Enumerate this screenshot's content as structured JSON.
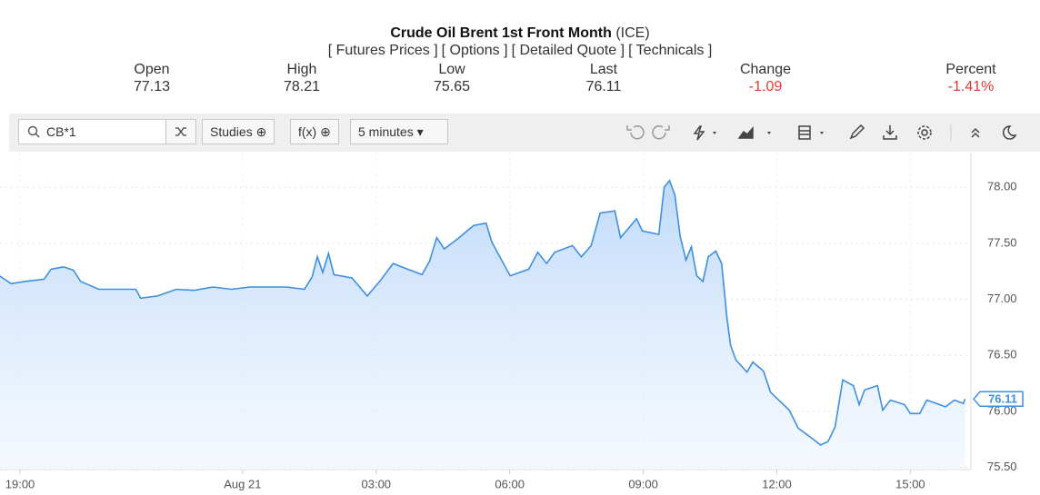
{
  "header": {
    "title": "Crude Oil Brent 1st Front Month",
    "exchange": "(ICE)",
    "links": [
      "[ Futures Prices ]",
      "[ Options ]",
      "[ Detailed Quote ]",
      "[ Technicals ]"
    ],
    "stats": [
      {
        "label": "Open",
        "value": "77.13"
      },
      {
        "label": "High",
        "value": "78.21"
      },
      {
        "label": "Low",
        "value": "75.65"
      },
      {
        "label": "Last",
        "value": "76.11"
      },
      {
        "label": "Change",
        "value": "-1.09"
      },
      {
        "label": "Percent",
        "value": "-1.41%"
      }
    ]
  },
  "toolbar": {
    "symbol": "CB*1",
    "studies": "Studies",
    "fx": "f(x)",
    "interval": "5 minutes"
  },
  "chart_data": {
    "type": "area",
    "color": "#3d8fe0",
    "grid": true,
    "x": [
      18.54,
      18.8,
      19.12,
      19.54,
      19.7,
      19.98,
      20.2,
      20.36,
      20.77,
      21.19,
      21.6,
      21.71,
      22.09,
      22.51,
      22.91,
      23.33,
      23.75,
      24.16,
      24.57,
      24.98,
      25.39,
      25.56,
      25.68,
      25.8,
      25.93,
      26.05,
      26.46,
      26.8,
      27.08,
      27.38,
      27.7,
      28.03,
      28.2,
      28.36,
      28.53,
      28.86,
      29.19,
      29.47,
      29.6,
      30.01,
      30.43,
      30.63,
      30.83,
      31.01,
      31.41,
      31.61,
      31.83,
      32.03,
      32.36,
      32.49,
      32.85,
      32.98,
      33.35,
      33.47,
      33.59,
      33.71,
      33.83,
      33.96,
      34.08,
      34.2,
      34.34,
      34.46,
      34.63,
      34.76,
      34.88,
      34.96,
      35.08,
      35.33,
      35.46,
      35.7,
      35.86,
      36.28,
      36.48,
      36.82,
      36.98,
      37.15,
      37.31,
      37.48,
      37.72,
      37.85,
      37.97,
      38.26,
      38.38,
      38.55,
      38.87,
      39.0,
      39.21,
      39.37,
      39.79,
      39.99,
      40.19,
      40.23
    ],
    "values": [
      77.21,
      77.14,
      77.16,
      77.18,
      77.27,
      77.29,
      77.26,
      77.16,
      77.09,
      77.09,
      77.09,
      77.01,
      77.03,
      77.09,
      77.08,
      77.11,
      77.09,
      77.11,
      77.11,
      77.11,
      77.09,
      77.2,
      77.38,
      77.24,
      77.41,
      77.22,
      77.19,
      77.03,
      77.16,
      77.32,
      77.27,
      77.22,
      77.34,
      77.55,
      77.45,
      77.55,
      77.66,
      77.68,
      77.51,
      77.21,
      77.27,
      77.42,
      77.32,
      77.42,
      77.48,
      77.38,
      77.48,
      77.77,
      77.79,
      77.55,
      77.72,
      77.61,
      77.58,
      78.0,
      78.06,
      77.93,
      77.56,
      77.35,
      77.47,
      77.21,
      77.16,
      77.38,
      77.43,
      77.32,
      76.83,
      76.59,
      76.46,
      76.35,
      76.44,
      76.36,
      76.17,
      76.01,
      75.85,
      75.75,
      75.7,
      75.73,
      75.86,
      76.28,
      76.23,
      76.06,
      76.19,
      76.23,
      76.01,
      76.1,
      76.06,
      75.98,
      75.98,
      76.1,
      76.04,
      76.1,
      76.07,
      76.11
    ],
    "xlim": [
      18.55,
      40.36
    ],
    "xticks": [
      {
        "value": 19,
        "label": "19:00"
      },
      {
        "value": 24,
        "label": "Aug 21"
      },
      {
        "value": 27,
        "label": "03:00"
      },
      {
        "value": 30,
        "label": "06:00"
      },
      {
        "value": 33,
        "label": "09:00"
      },
      {
        "value": 36,
        "label": "12:00"
      },
      {
        "value": 39,
        "label": "15:00"
      }
    ],
    "ylim": [
      75.48,
      78.31
    ],
    "yticks": [
      {
        "value": 75.5,
        "label": "75.50"
      },
      {
        "value": 76,
        "label": "76.00"
      },
      {
        "value": 76.5,
        "label": "76.50"
      },
      {
        "value": 77,
        "label": "77.00"
      },
      {
        "value": 77.5,
        "label": "77.50"
      },
      {
        "value": 78,
        "label": "78.00"
      }
    ]
  }
}
